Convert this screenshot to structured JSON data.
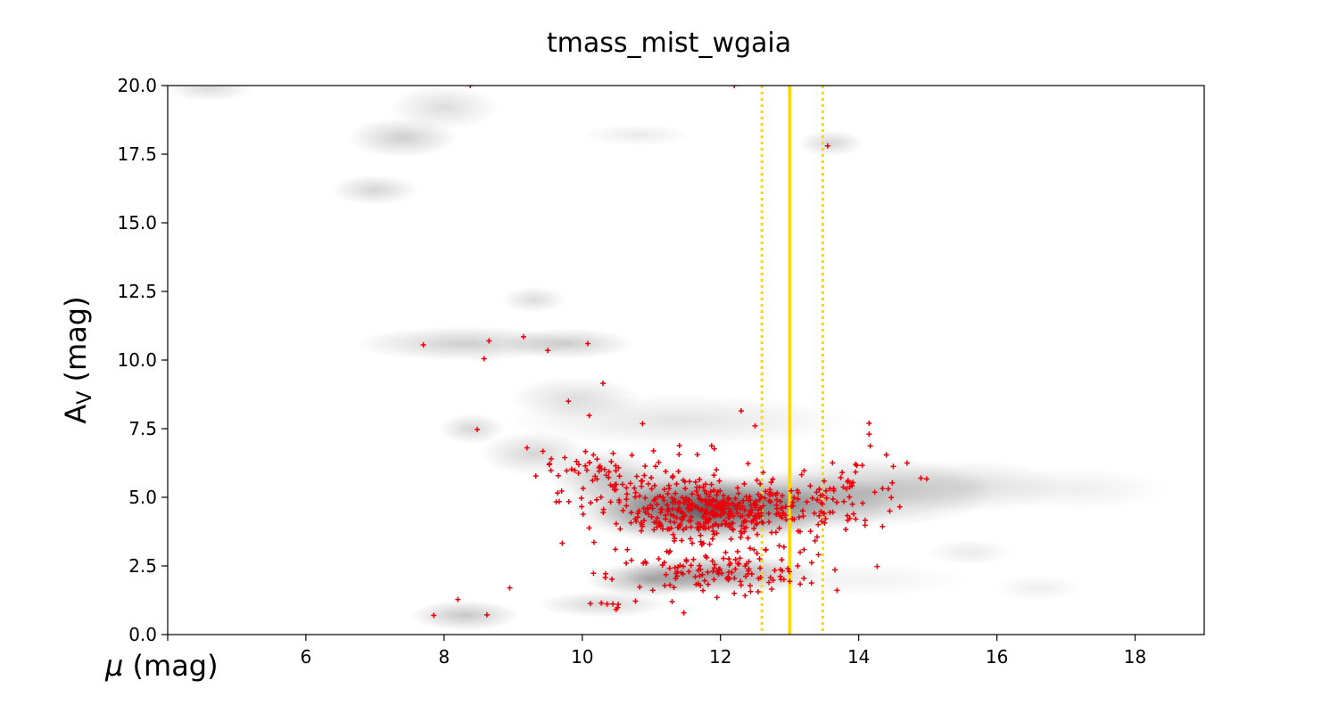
{
  "chart_data": {
    "type": "scatter",
    "title": "tmass_mist_wgaia",
    "xlabel_prefix": "μ",
    "xlabel_suffix": " (mag)",
    "ylabel_main": "A",
    "ylabel_sub": "V",
    "ylabel_suffix": " (mag)",
    "xlim": [
      4,
      19
    ],
    "ylim": [
      0,
      20
    ],
    "x_ticks": [
      6,
      8,
      10,
      12,
      14,
      16,
      18
    ],
    "x_tick_labels": [
      "6",
      "8",
      "10",
      "12",
      "14",
      "16",
      "18"
    ],
    "y_ticks": [
      0,
      2.5,
      5,
      7.5,
      10,
      12.5,
      15,
      17.5,
      20
    ],
    "y_tick_labels": [
      "0.0",
      "2.5",
      "5.0",
      "7.5",
      "10.0",
      "12.5",
      "15.0",
      "17.5",
      "20.0"
    ],
    "grid": false,
    "colors": {
      "points": "#e8000b",
      "reference_lines": "#ffd700",
      "density": "#000000"
    },
    "reference_lines": {
      "center": 13.0,
      "lower": 12.6,
      "upper": 13.48
    },
    "density_background": [
      {
        "x": 11.9,
        "y": 4.5,
        "sx": 1.1,
        "sy": 0.75,
        "w": 0.95
      },
      {
        "x": 11.2,
        "y": 4.8,
        "sx": 0.9,
        "sy": 0.9,
        "w": 0.6
      },
      {
        "x": 12.9,
        "y": 4.8,
        "sx": 1.1,
        "sy": 0.7,
        "w": 0.55
      },
      {
        "x": 14.2,
        "y": 5.2,
        "sx": 1.1,
        "sy": 0.8,
        "w": 0.45
      },
      {
        "x": 15.6,
        "y": 5.4,
        "sx": 0.9,
        "sy": 0.6,
        "w": 0.25
      },
      {
        "x": 12.0,
        "y": 2.2,
        "sx": 0.9,
        "sy": 0.45,
        "w": 0.7
      },
      {
        "x": 11.0,
        "y": 2.0,
        "sx": 0.6,
        "sy": 0.4,
        "w": 0.55
      },
      {
        "x": 10.3,
        "y": 5.8,
        "sx": 0.5,
        "sy": 0.6,
        "w": 0.4
      },
      {
        "x": 9.3,
        "y": 6.6,
        "sx": 0.5,
        "sy": 0.5,
        "w": 0.3
      },
      {
        "x": 8.4,
        "y": 7.5,
        "sx": 0.3,
        "sy": 0.35,
        "w": 0.3
      },
      {
        "x": 9.9,
        "y": 8.6,
        "sx": 0.6,
        "sy": 0.5,
        "w": 0.25
      },
      {
        "x": 11.4,
        "y": 7.8,
        "sx": 1.6,
        "sy": 0.6,
        "w": 0.2
      },
      {
        "x": 8.3,
        "y": 10.6,
        "sx": 1.0,
        "sy": 0.4,
        "w": 0.35
      },
      {
        "x": 9.8,
        "y": 10.6,
        "sx": 0.6,
        "sy": 0.35,
        "w": 0.35
      },
      {
        "x": 9.3,
        "y": 12.2,
        "sx": 0.3,
        "sy": 0.3,
        "w": 0.25
      },
      {
        "x": 8.3,
        "y": 0.7,
        "sx": 0.5,
        "sy": 0.35,
        "w": 0.4
      },
      {
        "x": 10.3,
        "y": 1.1,
        "sx": 0.6,
        "sy": 0.3,
        "w": 0.3
      },
      {
        "x": 7.4,
        "y": 18.1,
        "sx": 0.5,
        "sy": 0.45,
        "w": 0.35
      },
      {
        "x": 7.0,
        "y": 16.2,
        "sx": 0.4,
        "sy": 0.35,
        "w": 0.3
      },
      {
        "x": 8.0,
        "y": 19.2,
        "sx": 0.5,
        "sy": 0.5,
        "w": 0.25
      },
      {
        "x": 4.6,
        "y": 19.9,
        "sx": 0.4,
        "sy": 0.3,
        "w": 0.25
      },
      {
        "x": 13.6,
        "y": 17.9,
        "sx": 0.3,
        "sy": 0.3,
        "w": 0.3
      },
      {
        "x": 10.8,
        "y": 18.2,
        "sx": 0.5,
        "sy": 0.25,
        "w": 0.15
      },
      {
        "x": 15.6,
        "y": 3.0,
        "sx": 0.4,
        "sy": 0.3,
        "w": 0.15
      },
      {
        "x": 14.0,
        "y": 2.0,
        "sx": 1.0,
        "sy": 0.4,
        "w": 0.1
      },
      {
        "x": 16.6,
        "y": 1.7,
        "sx": 0.4,
        "sy": 0.3,
        "w": 0.12
      },
      {
        "x": 17.2,
        "y": 5.3,
        "sx": 0.8,
        "sy": 0.5,
        "w": 0.12
      }
    ],
    "point_clusters": [
      {
        "x": 11.9,
        "y": 4.45,
        "sx": 0.55,
        "sy": 0.45,
        "n": 260
      },
      {
        "x": 11.2,
        "y": 4.9,
        "sx": 0.75,
        "sy": 0.85,
        "n": 130
      },
      {
        "x": 13.0,
        "y": 4.6,
        "sx": 0.55,
        "sy": 0.5,
        "n": 60
      },
      {
        "x": 13.9,
        "y": 5.2,
        "sx": 0.45,
        "sy": 0.7,
        "n": 55
      },
      {
        "x": 11.9,
        "y": 2.2,
        "sx": 0.75,
        "sy": 0.35,
        "n": 110
      },
      {
        "x": 10.3,
        "y": 5.8,
        "sx": 0.35,
        "sy": 0.6,
        "n": 35
      },
      {
        "x": 9.7,
        "y": 6.3,
        "sx": 0.3,
        "sy": 0.4,
        "n": 10
      },
      {
        "x": 10.4,
        "y": 1.1,
        "sx": 0.25,
        "sy": 0.15,
        "n": 8
      },
      {
        "x": 12.4,
        "y": 3.0,
        "sx": 0.6,
        "sy": 0.4,
        "n": 25
      }
    ],
    "points_isolated": [
      {
        "x": 7.85,
        "y": 0.7
      },
      {
        "x": 8.2,
        "y": 1.28
      },
      {
        "x": 8.62,
        "y": 0.72
      },
      {
        "x": 8.95,
        "y": 1.7
      },
      {
        "x": 8.48,
        "y": 7.47
      },
      {
        "x": 7.7,
        "y": 10.55
      },
      {
        "x": 8.65,
        "y": 10.7
      },
      {
        "x": 8.58,
        "y": 10.05
      },
      {
        "x": 9.15,
        "y": 10.85
      },
      {
        "x": 9.5,
        "y": 10.35
      },
      {
        "x": 10.08,
        "y": 10.6
      },
      {
        "x": 10.3,
        "y": 9.15
      },
      {
        "x": 9.8,
        "y": 8.5
      },
      {
        "x": 10.1,
        "y": 7.98
      },
      {
        "x": 12.3,
        "y": 8.15
      },
      {
        "x": 12.5,
        "y": 7.6
      },
      {
        "x": 14.15,
        "y": 7.7
      },
      {
        "x": 14.15,
        "y": 7.3
      },
      {
        "x": 13.55,
        "y": 17.8
      },
      {
        "x": 8.38,
        "y": 20.0
      },
      {
        "x": 12.2,
        "y": 20.0
      },
      {
        "x": 14.9,
        "y": 5.7
      },
      {
        "x": 14.7,
        "y": 6.25
      },
      {
        "x": 14.45,
        "y": 4.5
      },
      {
        "x": 12.7,
        "y": 1.9
      },
      {
        "x": 11.3,
        "y": 1.2
      },
      {
        "x": 12.2,
        "y": 1.5
      },
      {
        "x": 9.2,
        "y": 6.8
      },
      {
        "x": 9.55,
        "y": 6.4
      },
      {
        "x": 14.4,
        "y": 6.55
      }
    ]
  }
}
